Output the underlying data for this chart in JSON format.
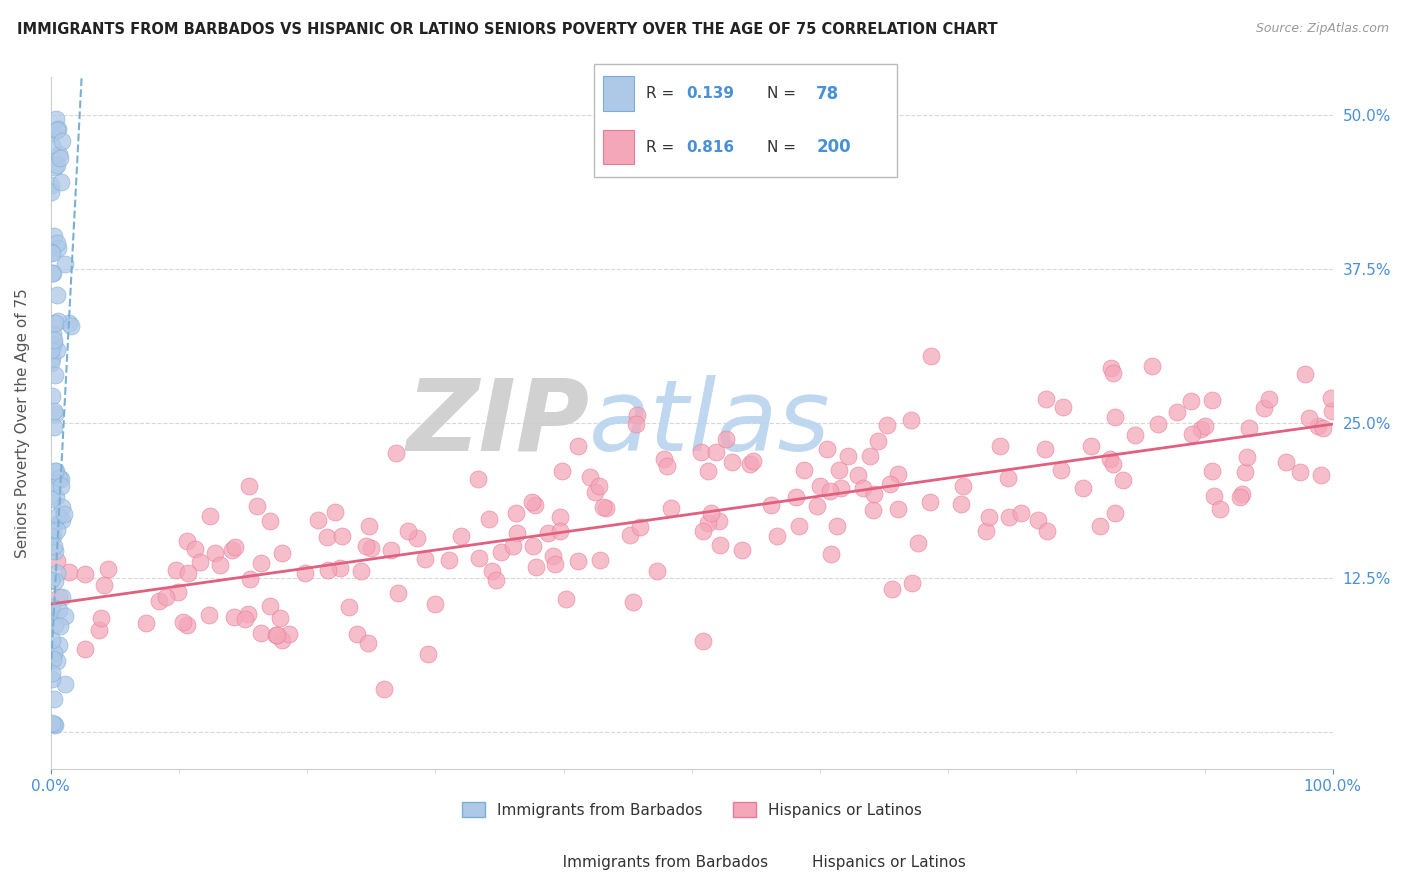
{
  "title": "IMMIGRANTS FROM BARBADOS VS HISPANIC OR LATINO SENIORS POVERTY OVER THE AGE OF 75 CORRELATION CHART",
  "source": "Source: ZipAtlas.com",
  "ylabel": "Seniors Poverty Over the Age of 75",
  "watermark_zip": "ZIP",
  "watermark_atlas": "atlas",
  "blue_R": 0.139,
  "blue_N": 78,
  "pink_R": 0.816,
  "pink_N": 200,
  "blue_color": "#aec8e8",
  "blue_edge": "#7aafd4",
  "pink_color": "#f4a7b9",
  "pink_edge": "#e87a97",
  "blue_line_color": "#7aafd4",
  "pink_line_color": "#e06080",
  "legend_blue_label": "Immigrants from Barbados",
  "legend_pink_label": "Hispanics or Latinos",
  "xlim": [
    0,
    100
  ],
  "ylim": [
    -3,
    53
  ],
  "ytick_positions": [
    0,
    12.5,
    25.0,
    37.5,
    50.0
  ],
  "right_ytick_labels": [
    "",
    "12.5%",
    "25.0%",
    "37.5%",
    "50.0%"
  ],
  "background_color": "#ffffff",
  "grid_color": "#d8d8d8",
  "title_color": "#222222",
  "axis_label_color": "#555555",
  "tick_label_color": "#4a90d9",
  "seed": 12
}
